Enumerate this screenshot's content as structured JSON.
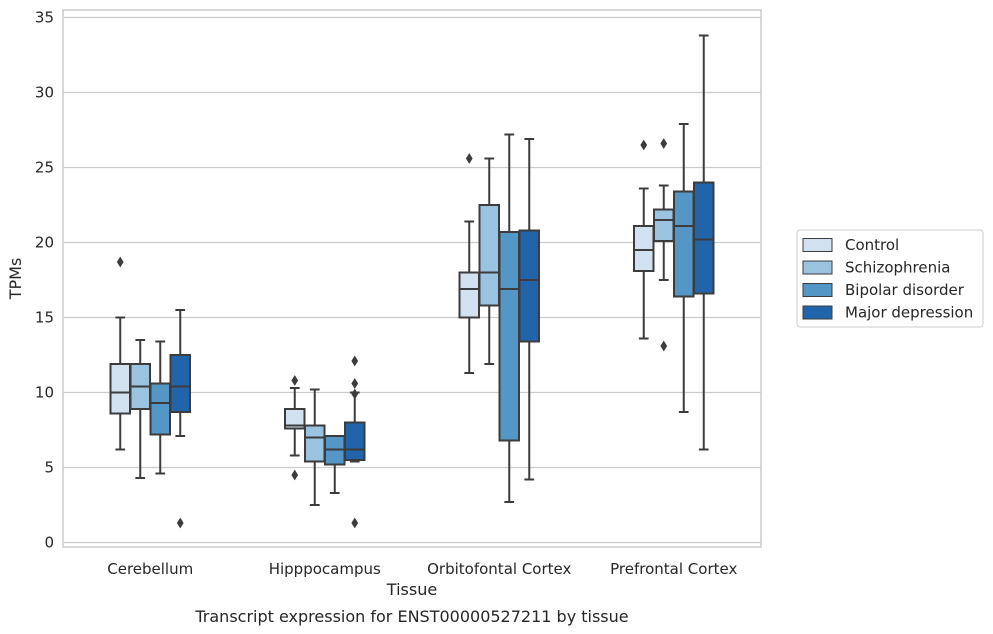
{
  "chart_data": {
    "type": "box",
    "xlabel": "Tissue",
    "ylabel": "TPMs",
    "caption": "Transcript expression for ENST00000527211 by tissue",
    "ylim": [
      -0.3,
      35.5
    ],
    "yticks": [
      0,
      5,
      10,
      15,
      20,
      25,
      30,
      35
    ],
    "grid": "horizontal",
    "legend_position": "right",
    "categories": [
      "Cerebellum",
      "Hipppocampus",
      "Orbitofontal Cortex",
      "Prefrontal Cortex"
    ],
    "series": [
      {
        "name": "Control",
        "color": "#d1e1f0",
        "boxes": [
          {
            "whislo": 6.2,
            "q1": 8.6,
            "med": 10.0,
            "q3": 11.9,
            "whishi": 15.0,
            "fliers": [
              18.7
            ]
          },
          {
            "whislo": 5.8,
            "q1": 7.6,
            "med": 7.8,
            "q3": 8.9,
            "whishi": 10.3,
            "fliers": [
              4.5,
              10.8
            ]
          },
          {
            "whislo": 11.3,
            "q1": 15.0,
            "med": 16.9,
            "q3": 18.0,
            "whishi": 21.4,
            "fliers": [
              25.6
            ]
          },
          {
            "whislo": 13.6,
            "q1": 18.1,
            "med": 19.5,
            "q3": 21.1,
            "whishi": 23.6,
            "fliers": [
              26.5
            ]
          }
        ]
      },
      {
        "name": "Schizophrenia",
        "color": "#9ac3df",
        "boxes": [
          {
            "whislo": 4.3,
            "q1": 8.9,
            "med": 10.4,
            "q3": 11.9,
            "whishi": 13.5,
            "fliers": []
          },
          {
            "whislo": 2.5,
            "q1": 5.4,
            "med": 7.0,
            "q3": 7.8,
            "whishi": 10.2,
            "fliers": []
          },
          {
            "whislo": 11.9,
            "q1": 15.8,
            "med": 18.0,
            "q3": 22.5,
            "whishi": 25.6,
            "fliers": []
          },
          {
            "whislo": 17.5,
            "q1": 20.1,
            "med": 21.5,
            "q3": 22.2,
            "whishi": 23.8,
            "fliers": [
              13.1,
              26.6
            ]
          }
        ]
      },
      {
        "name": "Bipolar disorder",
        "color": "#5497c6",
        "boxes": [
          {
            "whislo": 4.6,
            "q1": 7.2,
            "med": 9.3,
            "q3": 10.6,
            "whishi": 13.4,
            "fliers": []
          },
          {
            "whislo": 3.3,
            "q1": 5.2,
            "med": 6.2,
            "q3": 7.1,
            "whishi": 7.1,
            "fliers": []
          },
          {
            "whislo": 2.7,
            "q1": 6.8,
            "med": 16.9,
            "q3": 20.7,
            "whishi": 27.2,
            "fliers": []
          },
          {
            "whislo": 8.7,
            "q1": 16.4,
            "med": 21.1,
            "q3": 23.4,
            "whishi": 27.9,
            "fliers": []
          }
        ]
      },
      {
        "name": "Major depression",
        "color": "#2264a9",
        "boxes": [
          {
            "whislo": 7.1,
            "q1": 8.7,
            "med": 10.4,
            "q3": 12.5,
            "whishi": 15.5,
            "fliers": [
              1.3
            ]
          },
          {
            "whislo": 5.4,
            "q1": 5.5,
            "med": 6.2,
            "q3": 8.0,
            "whishi": 10.0,
            "fliers": [
              1.3,
              9.9,
              10.6,
              12.1
            ]
          },
          {
            "whislo": 4.2,
            "q1": 13.4,
            "med": 17.5,
            "q3": 20.8,
            "whishi": 26.9,
            "fliers": []
          },
          {
            "whislo": 6.2,
            "q1": 16.6,
            "med": 20.2,
            "q3": 24.0,
            "whishi": 33.8,
            "fliers": []
          }
        ]
      }
    ]
  }
}
